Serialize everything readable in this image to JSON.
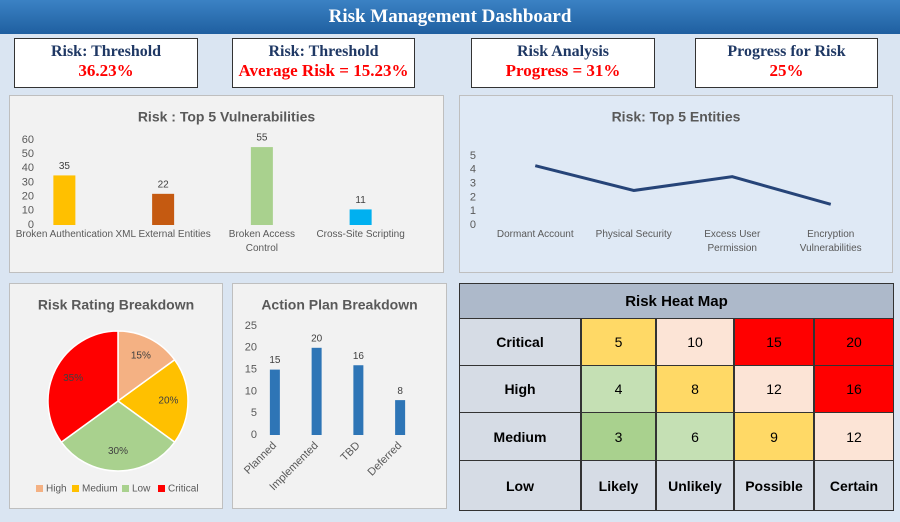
{
  "title": "Risk Management Dashboard",
  "kpis": [
    {
      "title": "Risk: Threshold",
      "value": "36.23%"
    },
    {
      "title": "Risk: Threshold",
      "value": "Average Risk = 15.23%"
    },
    {
      "title": "Risk Analysis",
      "value": "Progress = 31%"
    },
    {
      "title": "Progress for Risk",
      "value": "25%"
    }
  ],
  "chart_data": [
    {
      "type": "bar",
      "title": "Risk : Top 5 Vulnerabilities",
      "categories": [
        "Broken Authentication",
        "XML External Entities",
        "Broken Access Control",
        "Cross-Site Scripting"
      ],
      "values": [
        35,
        22,
        55,
        11
      ],
      "colors": [
        "#ffc000",
        "#c55a11",
        "#a9d18e",
        "#00b0f0"
      ],
      "ylim": [
        0,
        60
      ],
      "yticks": [
        0,
        10,
        20,
        30,
        40,
        50,
        60
      ],
      "grid": false,
      "show_value_labels": true
    },
    {
      "type": "line",
      "title": "Risk: Top 5 Entities",
      "categories": [
        "Dormant Account",
        "Physical Security",
        "Excess User Permission",
        "Encryption Vulnerabilities"
      ],
      "values": [
        4.3,
        2.5,
        3.5,
        1.5
      ],
      "color": "#264478",
      "ylim": [
        0,
        5
      ],
      "yticks": [
        0,
        1,
        2,
        3,
        4,
        5
      ],
      "grid": false
    },
    {
      "type": "pie",
      "title": "Risk Rating Breakdown",
      "categories": [
        "High",
        "Medium",
        "Low",
        "Critical"
      ],
      "values": [
        15,
        20,
        30,
        35
      ],
      "value_labels": [
        "15%",
        "20%",
        "30%",
        "35%"
      ],
      "colors": [
        "#f4b183",
        "#ffc000",
        "#a9d18e",
        "#ff0000"
      ],
      "legend": "bottom"
    },
    {
      "type": "bar",
      "title": "Action Plan Breakdown",
      "categories": [
        "Planned",
        "Implemented",
        "TBD",
        "Deferred"
      ],
      "values": [
        15,
        20,
        16,
        8
      ],
      "color": "#2e75b6",
      "ylim": [
        0,
        25
      ],
      "yticks": [
        0,
        5,
        10,
        15,
        20,
        25
      ],
      "grid": false,
      "show_value_labels": true,
      "x_label_rotation": -45
    }
  ],
  "heatmap": {
    "title": "Risk Heat Map",
    "corner": "Low",
    "columns": [
      "Likely",
      "Unlikely",
      "Possible",
      "Certain"
    ],
    "rows": [
      {
        "label": "Critical",
        "values": [
          5,
          10,
          15,
          20
        ],
        "colors": [
          "#ffd966",
          "#fce4d6",
          "#ff0000",
          "#ff0000"
        ]
      },
      {
        "label": "High",
        "values": [
          4,
          8,
          12,
          16
        ],
        "colors": [
          "#c5e0b4",
          "#ffd966",
          "#fce4d6",
          "#ff0000"
        ]
      },
      {
        "label": "Medium",
        "values": [
          3,
          6,
          9,
          12
        ],
        "colors": [
          "#a9d18e",
          "#c5e0b4",
          "#ffd966",
          "#fce4d6"
        ]
      }
    ]
  }
}
